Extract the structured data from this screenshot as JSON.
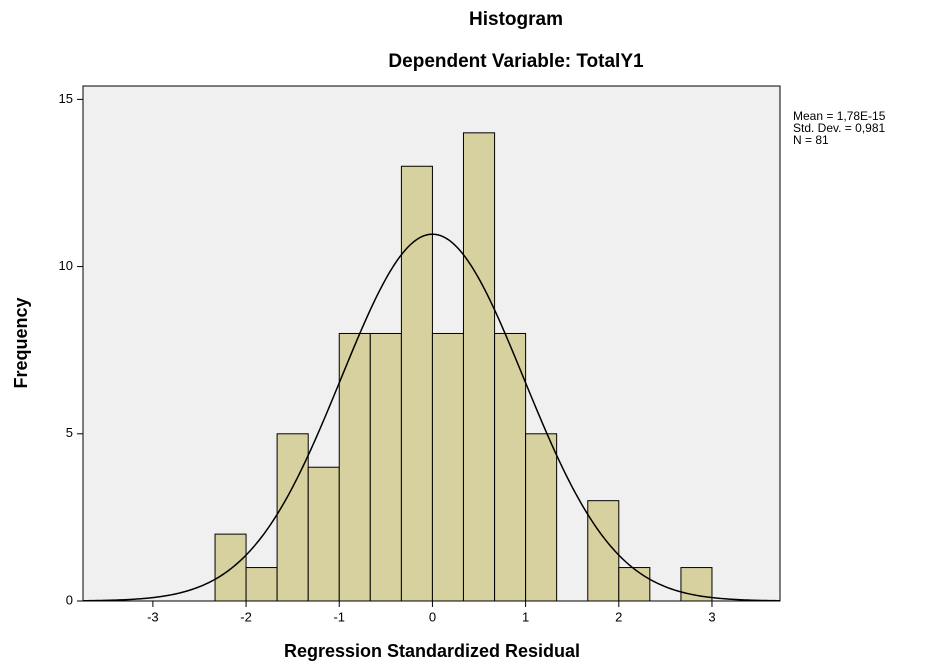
{
  "chart_data": {
    "type": "histogram",
    "title": "Histogram",
    "subtitle": "Dependent Variable: TotalY1",
    "x_label": "Regression Standardized Residual",
    "y_label": "Frequency",
    "bins": [
      -2.333,
      -2,
      -1.667,
      -1.333,
      -1,
      -0.667,
      -0.333,
      0,
      0.333,
      0.667,
      1,
      1.333,
      1.667,
      2,
      2.333,
      2.667,
      3
    ],
    "values": [
      2,
      1,
      5,
      4,
      8,
      8,
      13,
      8,
      14,
      8,
      5,
      0,
      3,
      1,
      0,
      1
    ],
    "color": "#d6d19e",
    "background": "#f0f0f0",
    "xlim": [
      -3.75,
      3.73
    ],
    "ylim": [
      0,
      15.4
    ],
    "xticks": [
      -3,
      -2,
      -1,
      0,
      1,
      2,
      3
    ],
    "yticks": [
      0,
      5,
      10,
      15
    ],
    "curve": {
      "mean": 1.78e-15,
      "std": 0.981,
      "n": 81
    },
    "stats_text": [
      "Mean = 1,78E-15",
      "Std. Dev. = 0,981",
      "N = 81"
    ]
  }
}
